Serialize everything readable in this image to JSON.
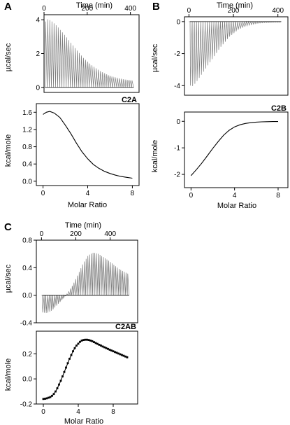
{
  "chart_data": [
    {
      "panel": "A",
      "type": "line",
      "sample": "C2A",
      "top": {
        "xlabel": "Time (min)",
        "ylabel": "µcal/sec",
        "xlim": [
          0,
          440
        ],
        "ylim": [
          -0.3,
          4.3
        ],
        "xticks": [
          0,
          200,
          400
        ],
        "yticks": [
          0,
          2,
          4
        ],
        "injections": 42,
        "peak_envelope": {
          "x": [
            5,
            10,
            30,
            60,
            100,
            140,
            180,
            220,
            260,
            300,
            340,
            380,
            415
          ],
          "y": [
            3.9,
            4.05,
            3.95,
            3.6,
            3.0,
            2.35,
            1.75,
            1.3,
            0.95,
            0.7,
            0.55,
            0.45,
            0.4
          ]
        }
      },
      "bottom": {
        "xlabel": "Molar Ratio",
        "ylabel": "kcal/mole",
        "xlim": [
          -0.6,
          8.6
        ],
        "ylim": [
          -0.1,
          1.8
        ],
        "xticks": [
          0,
          4,
          8
        ],
        "yticks": [
          0.0,
          0.4,
          0.8,
          1.2,
          1.6
        ],
        "fit": {
          "x": [
            0.0,
            0.3,
            0.6,
            1.0,
            1.5,
            2.0,
            2.5,
            3.0,
            3.5,
            4.0,
            4.5,
            5.0,
            5.5,
            6.0,
            6.5,
            7.0,
            7.5,
            8.0
          ],
          "y": [
            1.55,
            1.6,
            1.62,
            1.58,
            1.48,
            1.3,
            1.1,
            0.88,
            0.68,
            0.52,
            0.39,
            0.3,
            0.23,
            0.18,
            0.14,
            0.11,
            0.09,
            0.07
          ]
        }
      }
    },
    {
      "panel": "B",
      "type": "line",
      "sample": "C2B",
      "top": {
        "xlabel": "Time (min)",
        "ylabel": "µcal/sec",
        "xlim": [
          -20,
          445
        ],
        "ylim": [
          -4.6,
          0.3
        ],
        "xticks": [
          0,
          200,
          400
        ],
        "yticks": [
          -4,
          -2,
          0
        ],
        "injections": 42,
        "peak_envelope": {
          "x": [
            5,
            10,
            30,
            60,
            100,
            140,
            180,
            220,
            260,
            300,
            340,
            380,
            415
          ],
          "y": [
            -4.0,
            -4.1,
            -3.8,
            -3.2,
            -2.4,
            -1.6,
            -0.95,
            -0.5,
            -0.25,
            -0.12,
            -0.06,
            -0.04,
            -0.03
          ]
        }
      },
      "bottom": {
        "xlabel": "Molar Ratio",
        "ylabel": "kcal/mole",
        "xlim": [
          -0.6,
          8.9
        ],
        "ylim": [
          -2.5,
          0.35
        ],
        "xticks": [
          0,
          4,
          8
        ],
        "yticks": [
          -2,
          -1,
          0
        ],
        "fit": {
          "x": [
            0.0,
            0.5,
            1.0,
            1.5,
            2.0,
            2.5,
            3.0,
            3.5,
            4.0,
            4.5,
            5.0,
            5.5,
            6.0,
            6.5,
            7.0,
            7.5,
            8.0
          ],
          "y": [
            -2.05,
            -1.82,
            -1.57,
            -1.3,
            -1.02,
            -0.76,
            -0.52,
            -0.34,
            -0.21,
            -0.13,
            -0.08,
            -0.05,
            -0.03,
            -0.02,
            -0.015,
            -0.01,
            -0.01
          ]
        }
      }
    },
    {
      "panel": "C",
      "type": "line",
      "sample": "C2AB",
      "top": {
        "xlabel": "Time (min)",
        "ylabel": "µcal/sec",
        "xlim": [
          -30,
          560
        ],
        "ylim": [
          -0.4,
          0.8
        ],
        "xticks": [
          0,
          200,
          400
        ],
        "yticks": [
          -0.4,
          0.0,
          0.4,
          0.8
        ],
        "injections": 50,
        "peak_envelope": {
          "x": [
            5,
            30,
            60,
            90,
            120,
            150,
            180,
            210,
            240,
            270,
            300,
            330,
            360,
            390,
            420,
            450,
            480,
            510
          ],
          "y": [
            -0.25,
            -0.26,
            -0.22,
            -0.14,
            -0.06,
            0.03,
            0.15,
            0.3,
            0.46,
            0.58,
            0.62,
            0.6,
            0.55,
            0.5,
            0.44,
            0.38,
            0.34,
            0.3
          ]
        }
      },
      "bottom": {
        "xlabel": "Molar Ratio",
        "ylabel": "kcal/mole",
        "xlim": [
          -0.8,
          10.8
        ],
        "ylim": [
          -0.2,
          0.38
        ],
        "xticks": [
          0,
          4,
          8
        ],
        "yticks": [
          -0.2,
          0.0,
          0.2
        ],
        "data": {
          "x": [
            0.0,
            0.2,
            0.4,
            0.6,
            0.8,
            1.0,
            1.2,
            1.4,
            1.6,
            1.8,
            2.0,
            2.2,
            2.4,
            2.6,
            2.8,
            3.0,
            3.2,
            3.4,
            3.6,
            3.8,
            4.0,
            4.2,
            4.4,
            4.6,
            4.8,
            5.0,
            5.2,
            5.4,
            5.6,
            5.8,
            6.0,
            6.2,
            6.4,
            6.6,
            6.8,
            7.0,
            7.2,
            7.4,
            7.6,
            7.8,
            8.0,
            8.2,
            8.4,
            8.6,
            8.8,
            9.0,
            9.2,
            9.4,
            9.6
          ],
          "y": [
            -0.16,
            -0.158,
            -0.155,
            -0.15,
            -0.145,
            -0.135,
            -0.12,
            -0.1,
            -0.075,
            -0.045,
            -0.015,
            0.02,
            0.055,
            0.09,
            0.125,
            0.16,
            0.19,
            0.22,
            0.245,
            0.265,
            0.28,
            0.295,
            0.305,
            0.31,
            0.312,
            0.312,
            0.31,
            0.305,
            0.3,
            0.293,
            0.286,
            0.279,
            0.272,
            0.265,
            0.258,
            0.252,
            0.245,
            0.239,
            0.232,
            0.226,
            0.22,
            0.214,
            0.208,
            0.202,
            0.196,
            0.19,
            0.184,
            0.178,
            0.172
          ]
        }
      }
    }
  ]
}
